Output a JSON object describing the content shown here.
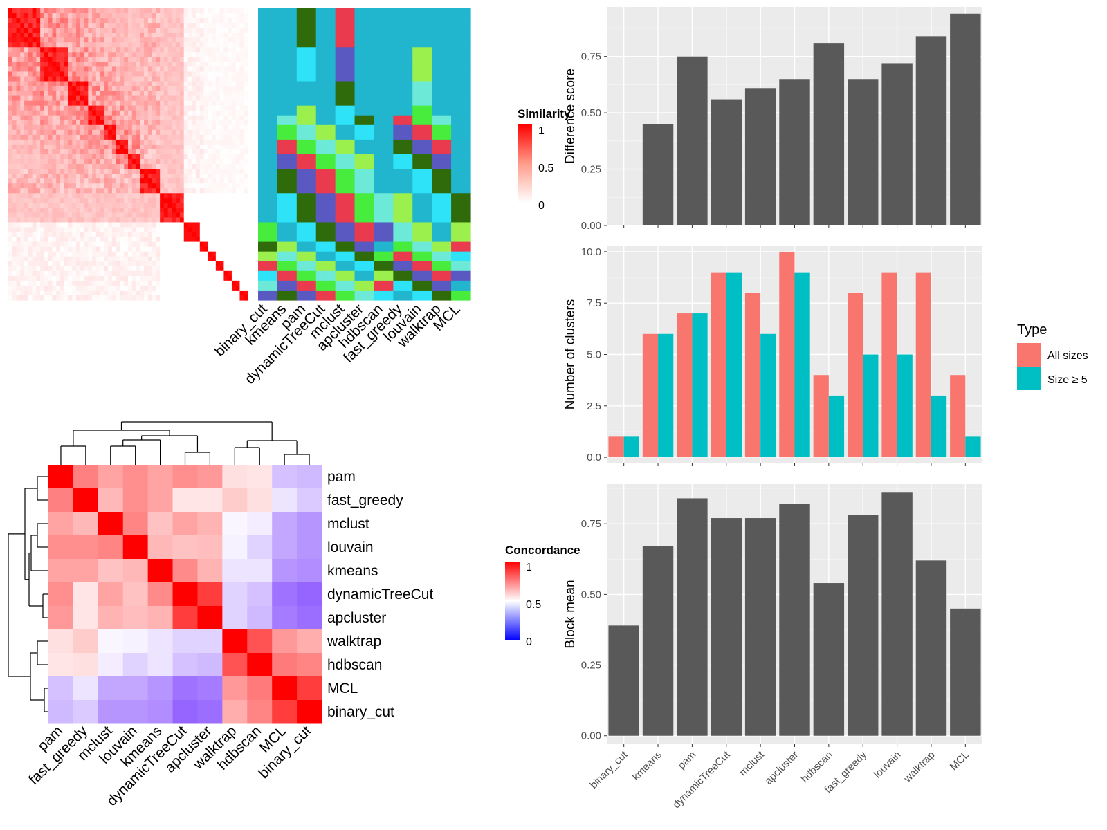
{
  "colors": {
    "panel_bg": "#ebebeb",
    "grid": "#ffffff",
    "bar": "#595959",
    "all_sizes": "#f8766d",
    "size_ge5": "#00bfc4",
    "heat_red": "#ff0000",
    "heat_white": "#ffffff",
    "heat_blue": "#0000ff",
    "cls_teal": "#21b6ce",
    "cls_green": "#47ec3c",
    "cls_darkgreen": "#2f6b0a",
    "cls_lightgreen": "#9cf04e",
    "cls_red": "#ea3a4e",
    "cls_cyan": "#2ee3f7",
    "cls_paleteal": "#6ce9d7",
    "cls_blue": "#5a59c1"
  },
  "methods_cols": [
    "binary_cut",
    "kmeans",
    "pam",
    "dynamicTreeCut",
    "mclust",
    "apcluster",
    "hdbscan",
    "fast_greedy",
    "louvain",
    "walktrap",
    "MCL"
  ],
  "legends": {
    "similarity": {
      "title": "Similarity",
      "labels": [
        "1",
        "0.5",
        "0"
      ]
    },
    "concordance": {
      "title": "Concordance",
      "labels": [
        "1",
        "0.5",
        "0"
      ]
    }
  },
  "chart_data": [
    {
      "type": "heatmap",
      "name": "similarity-matrix",
      "legend_title": "Similarity",
      "scale": [
        0,
        1
      ]
    },
    {
      "type": "heatmap",
      "name": "cluster-assignment",
      "columns": [
        "binary_cut",
        "kmeans",
        "pam",
        "dynamicTreeCut",
        "mclust",
        "apcluster",
        "hdbscan",
        "fast_greedy",
        "louvain",
        "walktrap",
        "MCL"
      ]
    },
    {
      "type": "heatmap",
      "name": "concordance",
      "legend_title": "Concordance",
      "scale": [
        0,
        1
      ],
      "rows": [
        "pam",
        "fast_greedy",
        "mclust",
        "louvain",
        "kmeans",
        "dynamicTreeCut",
        "apcluster",
        "walktrap",
        "hdbscan",
        "MCL",
        "binary_cut"
      ],
      "cols": [
        "pam",
        "fast_greedy",
        "mclust",
        "louvain",
        "kmeans",
        "dynamicTreeCut",
        "apcluster",
        "walktrap",
        "hdbscan",
        "MCL",
        "binary_cut"
      ],
      "values": [
        [
          1.0,
          0.75,
          0.68,
          0.72,
          0.68,
          0.72,
          0.7,
          0.56,
          0.55,
          0.36,
          0.34
        ],
        [
          0.75,
          1.0,
          0.64,
          0.72,
          0.68,
          0.55,
          0.55,
          0.6,
          0.56,
          0.44,
          0.38
        ],
        [
          0.68,
          0.64,
          1.0,
          0.74,
          0.62,
          0.68,
          0.65,
          0.48,
          0.46,
          0.3,
          0.26
        ],
        [
          0.72,
          0.72,
          0.74,
          1.0,
          0.64,
          0.62,
          0.63,
          0.47,
          0.4,
          0.3,
          0.26
        ],
        [
          0.68,
          0.68,
          0.62,
          0.64,
          1.0,
          0.73,
          0.65,
          0.44,
          0.44,
          0.26,
          0.24
        ],
        [
          0.72,
          0.55,
          0.68,
          0.62,
          0.73,
          1.0,
          0.88,
          0.4,
          0.36,
          0.18,
          0.15
        ],
        [
          0.7,
          0.55,
          0.65,
          0.63,
          0.65,
          0.88,
          1.0,
          0.4,
          0.34,
          0.2,
          0.17
        ],
        [
          0.56,
          0.6,
          0.48,
          0.47,
          0.44,
          0.4,
          0.4,
          1.0,
          0.84,
          0.7,
          0.66
        ],
        [
          0.55,
          0.56,
          0.46,
          0.4,
          0.44,
          0.36,
          0.34,
          0.84,
          1.0,
          0.76,
          0.74
        ],
        [
          0.36,
          0.44,
          0.3,
          0.3,
          0.26,
          0.18,
          0.2,
          0.7,
          0.76,
          1.0,
          0.88
        ],
        [
          0.34,
          0.38,
          0.26,
          0.26,
          0.24,
          0.15,
          0.17,
          0.66,
          0.74,
          0.88,
          1.0
        ]
      ]
    },
    {
      "type": "bar",
      "name": "difference-score",
      "categories": [
        "binary_cut",
        "kmeans",
        "pam",
        "dynamicTreeCut",
        "mclust",
        "apcluster",
        "hdbscan",
        "fast_greedy",
        "louvain",
        "walktrap",
        "MCL"
      ],
      "values": [
        null,
        0.45,
        0.75,
        0.56,
        0.61,
        0.65,
        0.81,
        0.65,
        0.72,
        0.84,
        0.94
      ],
      "ylabel": "Difference score",
      "ylim": [
        0,
        0.97
      ],
      "yticks": [
        "0.00",
        "0.25",
        "0.50",
        "0.75"
      ]
    },
    {
      "type": "bar",
      "name": "number-of-clusters",
      "categories": [
        "binary_cut",
        "kmeans",
        "pam",
        "dynamicTreeCut",
        "mclust",
        "apcluster",
        "hdbscan",
        "fast_greedy",
        "louvain",
        "walktrap",
        "MCL"
      ],
      "series": [
        {
          "name": "All sizes",
          "values": [
            1,
            6,
            7,
            9,
            8,
            10,
            4,
            8,
            9,
            9,
            4
          ]
        },
        {
          "name": "Size ≥ 5",
          "values": [
            1,
            6,
            7,
            9,
            6,
            9,
            3,
            5,
            5,
            3,
            1
          ]
        }
      ],
      "ylabel": "Number of clusters",
      "ylim": [
        -0.3,
        10.3
      ],
      "yticks": [
        "0.0",
        "2.5",
        "5.0",
        "7.5",
        "10.0"
      ],
      "legend_title": "Type",
      "legend_position": "right"
    },
    {
      "type": "bar",
      "name": "block-mean",
      "categories": [
        "binary_cut",
        "kmeans",
        "pam",
        "dynamicTreeCut",
        "mclust",
        "apcluster",
        "hdbscan",
        "fast_greedy",
        "louvain",
        "walktrap",
        "MCL"
      ],
      "values": [
        0.39,
        0.67,
        0.84,
        0.77,
        0.77,
        0.82,
        0.54,
        0.78,
        0.86,
        0.62,
        0.45
      ],
      "ylabel": "Block mean",
      "ylim": [
        -0.03,
        0.89
      ],
      "yticks": [
        "0.00",
        "0.25",
        "0.50",
        "0.75"
      ]
    }
  ]
}
